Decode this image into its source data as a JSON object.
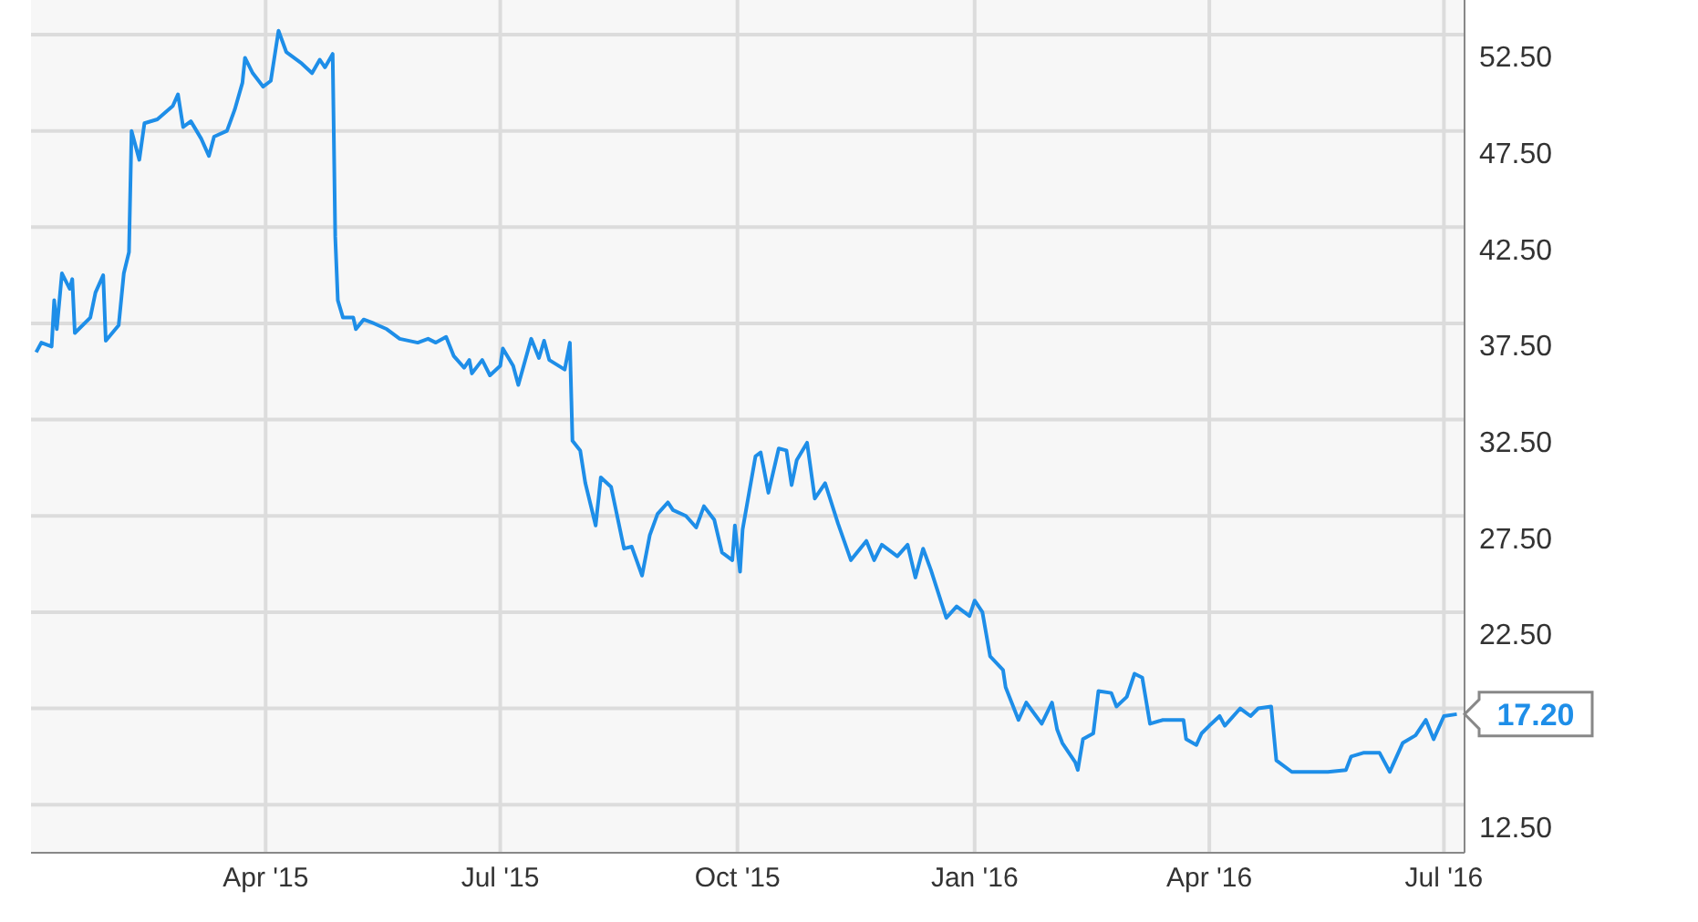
{
  "chart_data": {
    "type": "line",
    "color": "#1e8ee8",
    "x": [
      "2015-01-02",
      "2015-01-04",
      "2015-01-08",
      "2015-01-09",
      "2015-01-10",
      "2015-01-12",
      "2015-01-15",
      "2015-01-16",
      "2015-01-17",
      "2015-01-23",
      "2015-01-25",
      "2015-01-28",
      "2015-01-29",
      "2015-02-03",
      "2015-02-05",
      "2015-02-07",
      "2015-02-08",
      "2015-02-11",
      "2015-02-13",
      "2015-02-18",
      "2015-02-24",
      "2015-02-26",
      "2015-02-28",
      "2015-03-03",
      "2015-03-07",
      "2015-03-10",
      "2015-03-12",
      "2015-03-17",
      "2015-03-20",
      "2015-03-23",
      "2015-03-24",
      "2015-03-27",
      "2015-03-31",
      "2015-04-03",
      "2015-04-06",
      "2015-04-09",
      "2015-04-15",
      "2015-04-19",
      "2015-04-22",
      "2015-04-24",
      "2015-04-27",
      "2015-04-28",
      "2015-04-29",
      "2015-05-01",
      "2015-05-05",
      "2015-05-06",
      "2015-05-09",
      "2015-05-13",
      "2015-05-18",
      "2015-05-23",
      "2015-05-30",
      "2015-06-03",
      "2015-06-06",
      "2015-06-10",
      "2015-06-13",
      "2015-06-17",
      "2015-06-19",
      "2015-06-20",
      "2015-06-24",
      "2015-06-27",
      "2015-07-01",
      "2015-07-02",
      "2015-07-06",
      "2015-07-08",
      "2015-07-13",
      "2015-07-16",
      "2015-07-18",
      "2015-07-20",
      "2015-07-26",
      "2015-07-28",
      "2015-07-29",
      "2015-08-01",
      "2015-08-03",
      "2015-08-07",
      "2015-08-09",
      "2015-08-13",
      "2015-08-18",
      "2015-08-21",
      "2015-08-25",
      "2015-08-28",
      "2015-08-31",
      "2015-09-04",
      "2015-09-06",
      "2015-09-11",
      "2015-09-15",
      "2015-09-18",
      "2015-09-22",
      "2015-09-25",
      "2015-09-29",
      "2015-09-30",
      "2015-10-02",
      "2015-10-03",
      "2015-10-08",
      "2015-10-10",
      "2015-10-13",
      "2015-10-17",
      "2015-10-20",
      "2015-10-22",
      "2015-10-24",
      "2015-10-28",
      "2015-10-31",
      "2015-11-04",
      "2015-11-09",
      "2015-11-14",
      "2015-11-20",
      "2015-11-23",
      "2015-11-26",
      "2015-12-02",
      "2015-12-06",
      "2015-12-09",
      "2015-12-12",
      "2015-12-15",
      "2015-12-21",
      "2015-12-25",
      "2015-12-30",
      "2016-01-01",
      "2016-01-04",
      "2016-01-07",
      "2016-01-12",
      "2016-01-13",
      "2016-01-18",
      "2016-01-21",
      "2016-01-27",
      "2016-01-31",
      "2016-02-02",
      "2016-02-04",
      "2016-02-09",
      "2016-02-10",
      "2016-02-12",
      "2016-02-16",
      "2016-02-18",
      "2016-02-23",
      "2016-02-25",
      "2016-02-29",
      "2016-03-03",
      "2016-03-06",
      "2016-03-09",
      "2016-03-14",
      "2016-03-22",
      "2016-03-23",
      "2016-03-27",
      "2016-03-29",
      "2016-04-01",
      "2016-04-05",
      "2016-04-07",
      "2016-04-13",
      "2016-04-17",
      "2016-04-20",
      "2016-04-25",
      "2016-04-27",
      "2016-05-03",
      "2016-05-10",
      "2016-05-17",
      "2016-05-24",
      "2016-05-26",
      "2016-05-31",
      "2016-06-06",
      "2016-06-10",
      "2016-06-15",
      "2016-06-20",
      "2016-06-24",
      "2016-06-27",
      "2016-07-01",
      "2016-07-06"
    ],
    "values": [
      36.0,
      36.5,
      36.3,
      38.7,
      37.2,
      40.1,
      39.3,
      39.8,
      37.0,
      37.8,
      39.1,
      40.0,
      36.6,
      37.4,
      40.1,
      41.2,
      47.5,
      46.0,
      47.9,
      48.1,
      48.8,
      49.4,
      47.7,
      48.0,
      47.1,
      46.2,
      47.2,
      47.5,
      48.6,
      50.0,
      51.3,
      50.5,
      49.8,
      50.1,
      52.7,
      51.6,
      51.0,
      50.5,
      51.2,
      50.8,
      51.5,
      42.0,
      38.7,
      37.8,
      37.8,
      37.2,
      37.7,
      37.5,
      37.2,
      36.7,
      36.5,
      36.7,
      36.5,
      36.8,
      35.8,
      35.2,
      35.6,
      34.9,
      35.6,
      34.8,
      35.3,
      36.2,
      35.3,
      34.3,
      36.7,
      35.7,
      36.6,
      35.6,
      35.1,
      36.5,
      31.4,
      30.9,
      29.2,
      27.0,
      29.5,
      29.0,
      25.8,
      25.9,
      24.4,
      26.5,
      27.6,
      28.2,
      27.8,
      27.5,
      26.9,
      28.0,
      27.3,
      25.6,
      25.2,
      27.0,
      24.6,
      26.8,
      30.6,
      30.8,
      28.7,
      31.0,
      30.9,
      29.1,
      30.4,
      31.3,
      28.4,
      29.2,
      27.1,
      25.2,
      26.2,
      25.2,
      26.0,
      25.4,
      26.0,
      24.3,
      25.8,
      24.7,
      22.2,
      22.8,
      22.3,
      23.1,
      22.5,
      20.2,
      19.5,
      18.6,
      16.9,
      17.8,
      16.7,
      17.8,
      16.4,
      15.7,
      14.7,
      14.3,
      15.9,
      16.2,
      18.4,
      18.3,
      17.6,
      18.1,
      19.3,
      19.1,
      16.7,
      16.9,
      16.9,
      15.9,
      15.6,
      16.2,
      16.6,
      17.1,
      16.6,
      17.5,
      17.1,
      17.5,
      17.6,
      14.8,
      14.2,
      14.2,
      14.2,
      14.3,
      15.0,
      15.2,
      15.2,
      14.2,
      15.7,
      16.1,
      16.9,
      15.9,
      17.1,
      17.2
    ],
    "xlim": [
      "2014-12-31",
      "2016-07-09"
    ],
    "xticks": [
      {
        "value": "2015-04-01",
        "label": "Apr '15"
      },
      {
        "value": "2015-07-01",
        "label": "Jul '15"
      },
      {
        "value": "2015-10-01",
        "label": "Oct '15"
      },
      {
        "value": "2016-01-01",
        "label": "Jan '16"
      },
      {
        "value": "2016-04-01",
        "label": "Apr '16"
      },
      {
        "value": "2016-07-01",
        "label": "Jul '16"
      }
    ],
    "ylim": [
      10,
      54.3
    ],
    "yticks": [
      {
        "value": 12.5,
        "label": "12.50"
      },
      {
        "value": 17.5,
        "label": null
      },
      {
        "value": 22.5,
        "label": "22.50"
      },
      {
        "value": 27.5,
        "label": "27.50"
      },
      {
        "value": 32.5,
        "label": "32.50"
      },
      {
        "value": 37.5,
        "label": "37.50"
      },
      {
        "value": 42.5,
        "label": "42.50"
      },
      {
        "value": 47.5,
        "label": "47.50"
      },
      {
        "value": 52.5,
        "label": "52.50"
      }
    ],
    "annotations": [
      {
        "text": "17.20",
        "x": "2016-07-06",
        "y": 17.2
      }
    ],
    "grid": true,
    "marker": "none",
    "line_style": "solid"
  }
}
